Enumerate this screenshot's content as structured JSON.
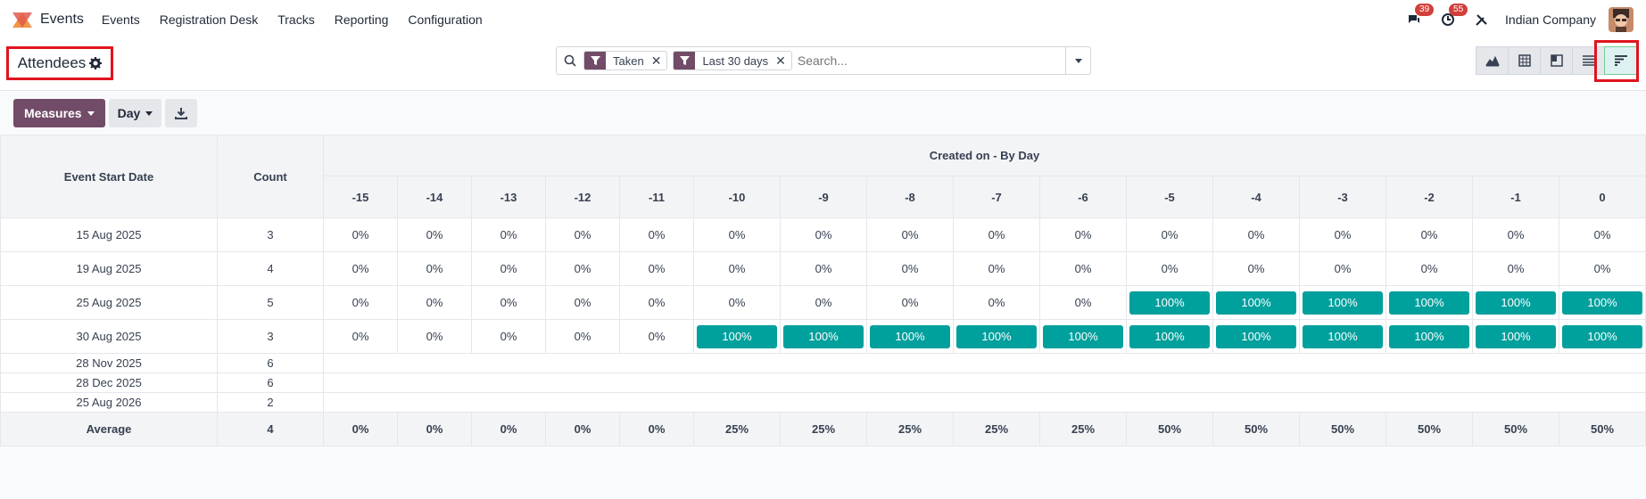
{
  "app": {
    "name": "Events",
    "menu": [
      "Events",
      "Registration Desk",
      "Tracks",
      "Reporting",
      "Configuration"
    ],
    "messages_count": "39",
    "activities_count": "55",
    "company": "Indian Company"
  },
  "control": {
    "title": "Attendees",
    "filters": [
      {
        "label": "Taken"
      },
      {
        "label": "Last 30 days"
      }
    ],
    "search_placeholder": "Search..."
  },
  "toolbar": {
    "measures_label": "Measures",
    "interval_label": "Day"
  },
  "table": {
    "row_header": "Event Start Date",
    "count_header": "Count",
    "group_header": "Created on - By Day",
    "columns": [
      "-15",
      "-14",
      "-13",
      "-12",
      "-11",
      "-10",
      "-9",
      "-8",
      "-7",
      "-6",
      "-5",
      "-4",
      "-3",
      "-2",
      "-1",
      "0"
    ],
    "rows": [
      {
        "date": "15 Aug 2025",
        "count": "3",
        "values": [
          "0%",
          "0%",
          "0%",
          "0%",
          "0%",
          "0%",
          "0%",
          "0%",
          "0%",
          "0%",
          "0%",
          "0%",
          "0%",
          "0%",
          "0%",
          "0%"
        ]
      },
      {
        "date": "19 Aug 2025",
        "count": "4",
        "values": [
          "0%",
          "0%",
          "0%",
          "0%",
          "0%",
          "0%",
          "0%",
          "0%",
          "0%",
          "0%",
          "0%",
          "0%",
          "0%",
          "0%",
          "0%",
          "0%"
        ]
      },
      {
        "date": "25 Aug 2025",
        "count": "5",
        "values": [
          "0%",
          "0%",
          "0%",
          "0%",
          "0%",
          "0%",
          "0%",
          "0%",
          "0%",
          "0%",
          "100%",
          "100%",
          "100%",
          "100%",
          "100%",
          "100%"
        ]
      },
      {
        "date": "30 Aug 2025",
        "count": "3",
        "values": [
          "0%",
          "0%",
          "0%",
          "0%",
          "0%",
          "100%",
          "100%",
          "100%",
          "100%",
          "100%",
          "100%",
          "100%",
          "100%",
          "100%",
          "100%",
          "100%"
        ]
      },
      {
        "date": "28 Nov 2025",
        "count": "6",
        "values": []
      },
      {
        "date": "28 Dec 2025",
        "count": "6",
        "values": []
      },
      {
        "date": "25 Aug 2026",
        "count": "2",
        "values": []
      }
    ],
    "average_label": "Average",
    "average_count": "4",
    "average_values": [
      "0%",
      "0%",
      "0%",
      "0%",
      "0%",
      "25%",
      "25%",
      "25%",
      "25%",
      "25%",
      "50%",
      "50%",
      "50%",
      "50%",
      "50%",
      "50%"
    ]
  },
  "colors": {
    "brand": "#714b67",
    "cohort_full": "#00a09d",
    "highlight": "#e0141e"
  }
}
